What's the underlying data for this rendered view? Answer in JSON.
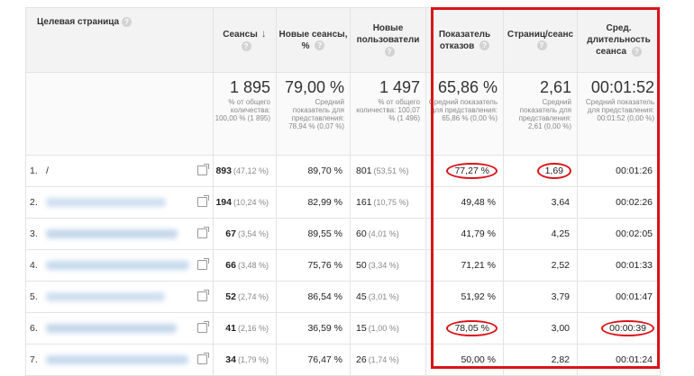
{
  "header": {
    "landing_page": "Целевая страница",
    "sessions": "Сеансы",
    "new_sessions_pct": "Новые сеансы, %",
    "new_users": "Новые пользователи",
    "bounce_rate": "Показатель отказов",
    "pages_per_session": "Страниц/сеанс",
    "avg_duration": "Сред. длительность сеанса",
    "help_glyph": "?",
    "sort_glyph": "↓"
  },
  "totals": {
    "sessions": {
      "value": "1 895",
      "sub": "% от общего количества: 100,00 % (1 895)"
    },
    "new_sessions_pct": {
      "value": "79,00 %",
      "sub": "Средний показатель для представления: 78,94 % (0,07 %)"
    },
    "new_users": {
      "value": "1 497",
      "sub": "% от общего количества: 100,07 % (1 496)"
    },
    "bounce_rate": {
      "value": "65,86 %",
      "sub": "Средний показатель для представления: 65,86 % (0,00 %)"
    },
    "pages_per_session": {
      "value": "2,61",
      "sub": "Средний показатель для представления: 2,61 (0,00 %)"
    },
    "avg_duration": {
      "value": "00:01:52",
      "sub": "Средний показатель для представления: 00:01:52 (0,00 %)"
    }
  },
  "rows": [
    {
      "idx": "1.",
      "page": "/",
      "sessions": "893",
      "sessions_pct": "(47,12 %)",
      "new_pct": "89,70 %",
      "new_users": "801",
      "new_users_pct": "(53,51 %)",
      "bounce": "77,27 %",
      "pps": "1,69",
      "dur": "00:01:26"
    },
    {
      "idx": "2.",
      "page": "",
      "sessions": "194",
      "sessions_pct": "(10,24 %)",
      "new_pct": "82,99 %",
      "new_users": "161",
      "new_users_pct": "(10,75 %)",
      "bounce": "49,48 %",
      "pps": "3,64",
      "dur": "00:02:26"
    },
    {
      "idx": "3.",
      "page": "",
      "sessions": "67",
      "sessions_pct": "(3,54 %)",
      "new_pct": "89,55 %",
      "new_users": "60",
      "new_users_pct": "(4,01 %)",
      "bounce": "41,79 %",
      "pps": "4,25",
      "dur": "00:02:05"
    },
    {
      "idx": "4.",
      "page": "",
      "sessions": "66",
      "sessions_pct": "(3,48 %)",
      "new_pct": "75,76 %",
      "new_users": "50",
      "new_users_pct": "(3,34 %)",
      "bounce": "71,21 %",
      "pps": "2,52",
      "dur": "00:01:33"
    },
    {
      "idx": "5.",
      "page": "",
      "sessions": "52",
      "sessions_pct": "(2,74 %)",
      "new_pct": "86,54 %",
      "new_users": "45",
      "new_users_pct": "(3,01 %)",
      "bounce": "51,92 %",
      "pps": "3,79",
      "dur": "00:01:47"
    },
    {
      "idx": "6.",
      "page": "",
      "sessions": "41",
      "sessions_pct": "(2,16 %)",
      "new_pct": "36,59 %",
      "new_users": "15",
      "new_users_pct": "(1,00 %)",
      "bounce": "78,05 %",
      "pps": "3,00",
      "dur": "00:00:39"
    },
    {
      "idx": "7.",
      "page": "",
      "sessions": "34",
      "sessions_pct": "(1,79 %)",
      "new_pct": "76,47 %",
      "new_users": "26",
      "new_users_pct": "(1,74 %)",
      "bounce": "50,00 %",
      "pps": "2,82",
      "dur": "00:01:24"
    }
  ],
  "highlight_color": "#d9141b",
  "icons": {
    "open_link": "external-link-icon",
    "help": "help-icon",
    "sort": "sort-desc-icon"
  }
}
